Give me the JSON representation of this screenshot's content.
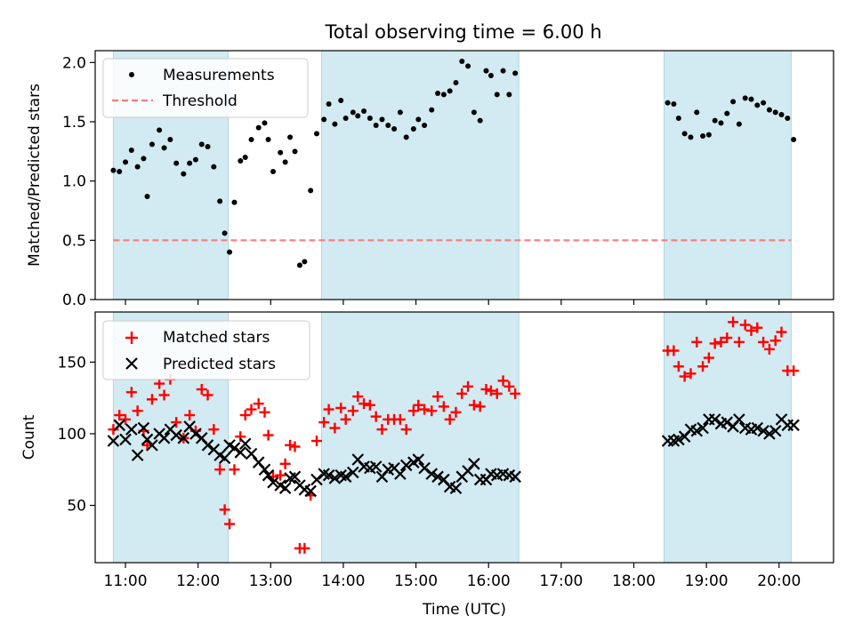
{
  "chart_data": [
    {
      "type": "scatter",
      "title": "Total observing time = 6.00 h",
      "ylabel": "Matched/Predicted stars",
      "xlabel": "",
      "xlim": [
        "10:35",
        "20:45"
      ],
      "ylim": [
        0,
        2.1
      ],
      "yticks": [
        0.0,
        0.5,
        1.0,
        1.5,
        2.0
      ],
      "ytick_labels": [
        "0.0",
        "0.5",
        "1.0",
        "1.5",
        "2.0"
      ],
      "legend_position": "upper-left",
      "legend": [
        "Measurements",
        "Threshold"
      ],
      "shaded_intervals": [
        [
          "10:50",
          "12:25"
        ],
        [
          "13:42",
          "16:25"
        ],
        [
          "18:25",
          "20:10"
        ]
      ],
      "colors": {
        "shade": "#add8e6",
        "threshold": "#ff7b7b",
        "points": "#000000"
      },
      "threshold": 0.5,
      "series": [
        {
          "name": "Measurements",
          "x": [
            "10:50",
            "10:55",
            "11:00",
            "11:05",
            "11:10",
            "11:15",
            "11:18",
            "11:22",
            "11:28",
            "11:32",
            "11:37",
            "11:42",
            "11:48",
            "11:53",
            "11:58",
            "12:03",
            "12:08",
            "12:13",
            "12:18",
            "12:22",
            "12:26",
            "12:30",
            "12:35",
            "12:39",
            "12:44",
            "12:50",
            "12:55",
            "12:58",
            "13:02",
            "13:08",
            "13:12",
            "13:16",
            "13:20",
            "13:24",
            "13:28",
            "13:33",
            "13:38",
            "13:44",
            "13:48",
            "13:53",
            "13:58",
            "14:02",
            "14:08",
            "14:12",
            "14:17",
            "14:22",
            "14:27",
            "14:32",
            "14:37",
            "14:42",
            "14:47",
            "14:52",
            "14:58",
            "15:02",
            "15:07",
            "15:13",
            "15:18",
            "15:23",
            "15:28",
            "15:33",
            "15:38",
            "15:43",
            "15:48",
            "15:53",
            "15:58",
            "16:02",
            "16:07",
            "16:12",
            "16:17",
            "16:22",
            "18:28",
            "18:33",
            "18:37",
            "18:42",
            "18:47",
            "18:52",
            "18:57",
            "19:02",
            "19:07",
            "19:12",
            "19:17",
            "19:22",
            "19:27",
            "19:32",
            "19:37",
            "19:42",
            "19:47",
            "19:52",
            "19:57",
            "20:02",
            "20:07",
            "20:12"
          ],
          "y": [
            1.09,
            1.08,
            1.16,
            1.26,
            1.12,
            1.19,
            0.87,
            1.31,
            1.43,
            1.28,
            1.35,
            1.15,
            1.06,
            1.15,
            1.18,
            1.31,
            1.29,
            1.12,
            0.83,
            0.56,
            0.4,
            0.82,
            1.17,
            1.2,
            1.35,
            1.45,
            1.49,
            1.35,
            1.08,
            1.24,
            1.16,
            1.37,
            1.25,
            0.29,
            0.32,
            0.92,
            1.4,
            1.52,
            1.65,
            1.48,
            1.68,
            1.53,
            1.58,
            1.55,
            1.59,
            1.53,
            1.47,
            1.52,
            1.47,
            1.44,
            1.58,
            1.37,
            1.44,
            1.52,
            1.47,
            1.6,
            1.74,
            1.73,
            1.76,
            1.83,
            2.01,
            1.97,
            1.58,
            1.51,
            1.93,
            1.89,
            1.73,
            1.93,
            1.73,
            1.91,
            1.66,
            1.65,
            1.53,
            1.4,
            1.37,
            1.58,
            1.38,
            1.39,
            1.51,
            1.49,
            1.57,
            1.67,
            1.48,
            1.7,
            1.69,
            1.64,
            1.66,
            1.6,
            1.58,
            1.56,
            1.53,
            1.35
          ]
        },
        {
          "name": "Threshold",
          "x": [
            "10:50",
            "20:10"
          ],
          "y": [
            0.5,
            0.5
          ]
        }
      ]
    },
    {
      "type": "scatter",
      "title": "",
      "ylabel": "Count",
      "xlabel": "Time (UTC)",
      "xlim": [
        "10:35",
        "20:45"
      ],
      "ylim": [
        10,
        185
      ],
      "yticks": [
        50,
        100,
        150
      ],
      "ytick_labels": [
        "50",
        "100",
        "150"
      ],
      "xtick_labels": [
        "11:00",
        "12:00",
        "13:00",
        "14:00",
        "15:00",
        "16:00",
        "17:00",
        "18:00",
        "19:00",
        "20:00"
      ],
      "xticks": [
        "11:00",
        "12:00",
        "13:00",
        "14:00",
        "15:00",
        "16:00",
        "17:00",
        "18:00",
        "19:00",
        "20:00"
      ],
      "legend_position": "upper-left",
      "legend": [
        "Matched stars",
        "Predicted stars"
      ],
      "shaded_intervals": [
        [
          "10:50",
          "12:25"
        ],
        [
          "13:42",
          "16:25"
        ],
        [
          "18:25",
          "20:10"
        ]
      ],
      "colors": {
        "shade": "#add8e6",
        "matched": "#ff0000",
        "predicted": "#000000"
      },
      "series": [
        {
          "name": "Matched stars",
          "x": [
            "10:50",
            "10:55",
            "11:00",
            "11:05",
            "11:10",
            "11:15",
            "11:18",
            "11:22",
            "11:28",
            "11:32",
            "11:37",
            "11:42",
            "11:48",
            "11:53",
            "11:58",
            "12:03",
            "12:08",
            "12:13",
            "12:18",
            "12:22",
            "12:26",
            "12:30",
            "12:35",
            "12:39",
            "12:44",
            "12:50",
            "12:55",
            "12:58",
            "13:02",
            "13:08",
            "13:12",
            "13:16",
            "13:20",
            "13:24",
            "13:28",
            "13:33",
            "13:38",
            "13:44",
            "13:48",
            "13:53",
            "13:58",
            "14:02",
            "14:08",
            "14:12",
            "14:17",
            "14:22",
            "14:27",
            "14:32",
            "14:37",
            "14:42",
            "14:47",
            "14:52",
            "14:58",
            "15:02",
            "15:07",
            "15:13",
            "15:18",
            "15:23",
            "15:28",
            "15:33",
            "15:38",
            "15:43",
            "15:48",
            "15:53",
            "15:58",
            "16:02",
            "16:07",
            "16:12",
            "16:17",
            "16:22",
            "18:28",
            "18:33",
            "18:37",
            "18:42",
            "18:47",
            "18:52",
            "18:57",
            "19:02",
            "19:07",
            "19:12",
            "19:17",
            "19:22",
            "19:27",
            "19:32",
            "19:37",
            "19:42",
            "19:47",
            "19:52",
            "19:57",
            "20:02",
            "20:07",
            "20:12"
          ],
          "y": [
            103,
            113,
            110,
            129,
            116,
            102,
            92,
            124,
            135,
            127,
            138,
            108,
            97,
            113,
            102,
            131,
            127,
            103,
            75,
            47,
            37,
            75,
            98,
            113,
            117,
            121,
            115,
            99,
            70,
            71,
            79,
            92,
            91,
            20,
            20,
            57,
            95,
            108,
            117,
            104,
            118,
            110,
            116,
            126,
            121,
            120,
            112,
            103,
            110,
            110,
            110,
            103,
            116,
            120,
            117,
            116,
            126,
            119,
            110,
            115,
            128,
            133,
            120,
            119,
            131,
            130,
            128,
            137,
            133,
            128,
            158,
            158,
            147,
            140,
            142,
            164,
            147,
            153,
            163,
            164,
            167,
            178,
            164,
            176,
            172,
            174,
            164,
            159,
            165,
            171,
            144,
            144
          ]
        },
        {
          "name": "Predicted stars",
          "x": [
            "10:50",
            "10:55",
            "11:00",
            "11:05",
            "11:10",
            "11:15",
            "11:18",
            "11:22",
            "11:28",
            "11:32",
            "11:37",
            "11:42",
            "11:48",
            "11:53",
            "11:58",
            "12:03",
            "12:08",
            "12:13",
            "12:18",
            "12:22",
            "12:26",
            "12:30",
            "12:35",
            "12:39",
            "12:44",
            "12:50",
            "12:55",
            "12:58",
            "13:02",
            "13:08",
            "13:12",
            "13:16",
            "13:20",
            "13:24",
            "13:28",
            "13:33",
            "13:38",
            "13:44",
            "13:48",
            "13:53",
            "13:58",
            "14:02",
            "14:08",
            "14:12",
            "14:17",
            "14:22",
            "14:27",
            "14:32",
            "14:37",
            "14:42",
            "14:47",
            "14:52",
            "14:58",
            "15:02",
            "15:07",
            "15:13",
            "15:18",
            "15:23",
            "15:28",
            "15:33",
            "15:38",
            "15:43",
            "15:48",
            "15:53",
            "15:58",
            "16:02",
            "16:07",
            "16:12",
            "16:17",
            "16:22",
            "18:28",
            "18:33",
            "18:37",
            "18:42",
            "18:47",
            "18:52",
            "18:57",
            "19:02",
            "19:07",
            "19:12",
            "19:17",
            "19:22",
            "19:27",
            "19:32",
            "19:37",
            "19:42",
            "19:47",
            "19:52",
            "19:57",
            "20:02",
            "20:07",
            "20:12"
          ],
          "y": [
            95,
            106,
            96,
            103,
            85,
            104,
            96,
            92,
            100,
            97,
            103,
            99,
            97,
            105,
            100,
            97,
            92,
            89,
            85,
            83,
            92,
            90,
            87,
            93,
            86,
            80,
            75,
            71,
            66,
            64,
            62,
            69,
            70,
            64,
            61,
            60,
            68,
            72,
            71,
            69,
            71,
            70,
            73,
            82,
            77,
            76,
            77,
            70,
            75,
            76,
            72,
            78,
            80,
            82,
            76,
            72,
            70,
            68,
            63,
            62,
            70,
            74,
            79,
            68,
            68,
            72,
            71,
            72,
            71,
            70,
            95,
            95,
            96,
            98,
            103,
            102,
            104,
            110,
            110,
            107,
            108,
            105,
            110,
            104,
            103,
            104,
            102,
            100,
            102,
            110,
            106,
            106
          ]
        }
      ]
    }
  ]
}
